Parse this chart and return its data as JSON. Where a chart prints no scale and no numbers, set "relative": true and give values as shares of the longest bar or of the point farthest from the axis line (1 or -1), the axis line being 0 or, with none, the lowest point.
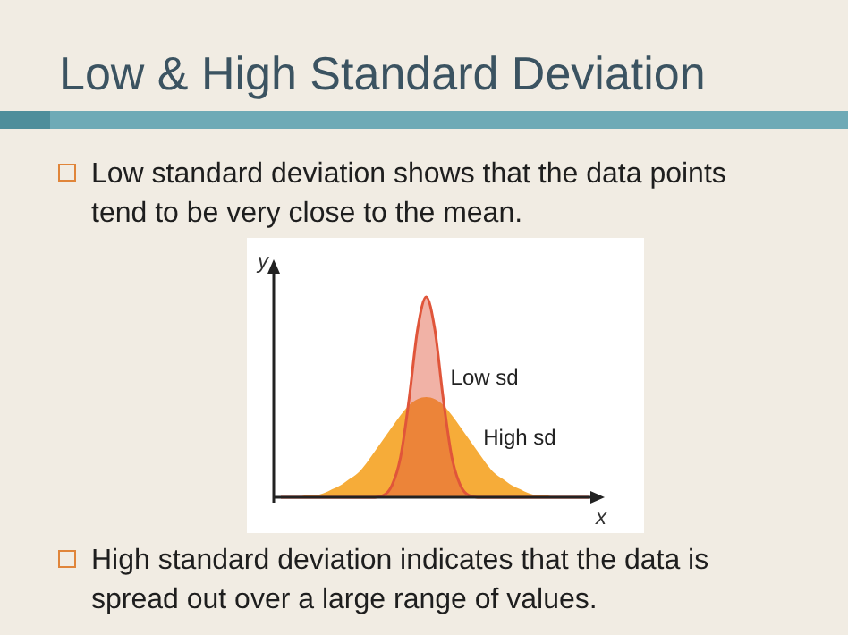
{
  "chart_data": {
    "type": "area",
    "title": "Low & High Standard Deviation",
    "xlabel": "x",
    "ylabel": "y",
    "relative": true,
    "annotations": [
      "Low standard deviation shows that the data points tend to be very close to the mean.",
      "High standard deviation indicates that the data is spread out over a large range of values."
    ],
    "categories": [
      null,
      null,
      null,
      null,
      null,
      null,
      null,
      null,
      null,
      null,
      null,
      null,
      null,
      null,
      null,
      null,
      null,
      null,
      null,
      null,
      null,
      null,
      null,
      null,
      null,
      null,
      null,
      null,
      null,
      null,
      null,
      null,
      null,
      null,
      null,
      null,
      null
    ],
    "series": [
      {
        "name": "High sd",
        "color": "#f5a82e",
        "values": [
          0,
          0,
          0,
          0.01,
          0.01,
          0.02,
          0.04,
          0.06,
          0.09,
          0.12,
          0.17,
          0.23,
          0.29,
          0.35,
          0.41,
          0.46,
          0.49,
          0.5,
          0.49,
          0.46,
          0.41,
          0.35,
          0.29,
          0.23,
          0.17,
          0.12,
          0.09,
          0.06,
          0.04,
          0.02,
          0.01,
          0.01,
          0,
          0,
          0,
          0,
          0
        ]
      },
      {
        "name": "Low sd",
        "color": "#e0553a",
        "values": [
          0,
          0,
          0,
          0,
          0,
          0,
          0,
          0,
          0,
          0,
          0,
          0,
          0.01,
          0.06,
          0.2,
          0.49,
          0.84,
          1,
          0.84,
          0.49,
          0.2,
          0.06,
          0.01,
          0,
          0,
          0,
          0,
          0,
          0,
          0,
          0,
          0,
          0,
          0,
          0,
          0,
          0
        ]
      }
    ]
  }
}
